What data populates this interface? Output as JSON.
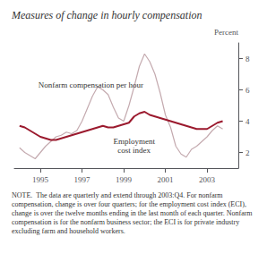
{
  "chart_data": {
    "type": "line",
    "title": "Measures of change in hourly compensation",
    "ylabel": "Percent",
    "note": "NOTE.  The data are quarterly and extend through 2003:Q4. For nonfarm compensation, change is over four quarters; for the employment cost index (ECI), change is over the twelve months ending in the last month of each quarter. Nonfarm compensation is for the nonfarm business sector; the ECI is for private industry excluding farm and household workers.",
    "x": [
      1994.0,
      1994.25,
      1994.5,
      1994.75,
      1995.0,
      1995.25,
      1995.5,
      1995.75,
      1996.0,
      1996.25,
      1996.5,
      1996.75,
      1997.0,
      1997.25,
      1997.5,
      1997.75,
      1998.0,
      1998.25,
      1998.5,
      1998.75,
      1999.0,
      1999.25,
      1999.5,
      1999.75,
      2000.0,
      2000.25,
      2000.5,
      2000.75,
      2001.0,
      2001.25,
      2001.5,
      2001.75,
      2002.0,
      2002.25,
      2002.5,
      2002.75,
      2003.0,
      2003.25,
      2003.5,
      2003.75
    ],
    "series": [
      {
        "name": "Nonfarm compensation per hour",
        "color": "#c4aaaf",
        "values": [
          2.3,
          2.0,
          1.8,
          1.6,
          2.0,
          2.4,
          2.7,
          3.0,
          3.1,
          3.3,
          3.2,
          3.4,
          4.0,
          4.8,
          5.6,
          6.2,
          6.0,
          5.7,
          4.9,
          4.2,
          4.0,
          5.0,
          6.2,
          7.5,
          8.3,
          7.8,
          7.0,
          5.8,
          4.4,
          3.6,
          2.4,
          1.9,
          1.7,
          2.2,
          2.4,
          2.7,
          3.0,
          3.4,
          3.7,
          3.5
        ]
      },
      {
        "name": "Employment\ncost index",
        "color": "#9b1a2e",
        "values": [
          3.7,
          3.6,
          3.4,
          3.2,
          3.0,
          2.9,
          2.8,
          2.8,
          2.9,
          3.0,
          3.1,
          3.2,
          3.3,
          3.4,
          3.5,
          3.6,
          3.7,
          3.6,
          3.6,
          3.7,
          3.8,
          3.9,
          4.3,
          4.5,
          4.6,
          4.4,
          4.3,
          4.2,
          4.1,
          4.0,
          3.9,
          3.8,
          3.7,
          3.6,
          3.5,
          3.5,
          3.5,
          3.7,
          3.9,
          4.0
        ]
      }
    ],
    "annotations": [
      {
        "text": "Nonfarm compensation per hour",
        "x": 1994.9,
        "y": 6.05
      },
      {
        "text": "Employment\ncost index",
        "x": 1999.5,
        "y": 3.0
      }
    ],
    "xlim": [
      1993.75,
      2004.5
    ],
    "xticks": [
      1995,
      1997,
      1999,
      2001,
      2003
    ],
    "ylim": [
      1.0,
      9.0
    ],
    "yticks": [
      2,
      4,
      6,
      8
    ],
    "grid": false,
    "legend": false
  }
}
